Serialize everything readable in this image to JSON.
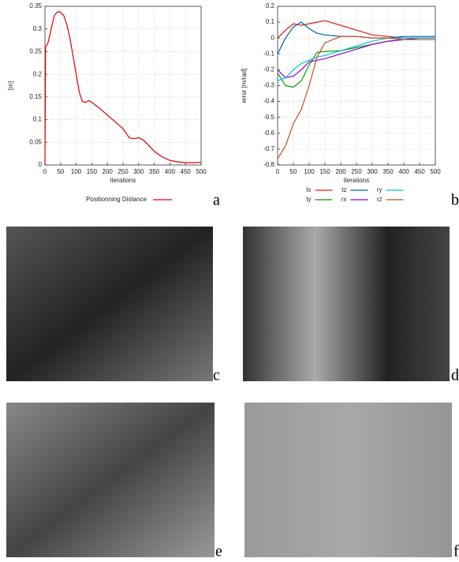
{
  "chart_data": [
    {
      "type": "line",
      "panel": "a",
      "xlabel": "iterations",
      "ylabel": "[m]",
      "xlim": [
        0,
        500
      ],
      "xticks": [
        0,
        50,
        100,
        150,
        200,
        250,
        300,
        350,
        400,
        450,
        500
      ],
      "ylim": [
        0,
        0.35
      ],
      "yticks": [
        0,
        0.05,
        0.1,
        0.15,
        0.2,
        0.25,
        0.3,
        0.35
      ],
      "grid": true,
      "legend": "bottom",
      "x": [
        0,
        2,
        10,
        20,
        30,
        40,
        50,
        60,
        70,
        80,
        90,
        100,
        110,
        120,
        130,
        140,
        150,
        175,
        200,
        225,
        250,
        270,
        285,
        300,
        315,
        330,
        350,
        375,
        400,
        425,
        450,
        475,
        500
      ],
      "series": [
        {
          "name": "Positionning Distance",
          "color": "#e00000",
          "values": [
            0,
            0.26,
            0.27,
            0.3,
            0.33,
            0.338,
            0.337,
            0.33,
            0.31,
            0.28,
            0.24,
            0.2,
            0.16,
            0.14,
            0.138,
            0.142,
            0.138,
            0.125,
            0.11,
            0.095,
            0.08,
            0.06,
            0.058,
            0.06,
            0.055,
            0.045,
            0.03,
            0.018,
            0.01,
            0.007,
            0.005,
            0.005,
            0.006
          ]
        }
      ]
    },
    {
      "type": "line",
      "panel": "b",
      "xlabel": "iterations",
      "ylabel": "error [m/rad]",
      "xlim": [
        0,
        500
      ],
      "xticks": [
        0,
        50,
        100,
        150,
        200,
        250,
        300,
        350,
        400,
        450,
        500
      ],
      "ylim": [
        -0.8,
        0.2
      ],
      "yticks": [
        -0.8,
        -0.7,
        -0.6,
        -0.5,
        -0.4,
        -0.3,
        -0.2,
        -0.1,
        0,
        0.1,
        0.2
      ],
      "grid": true,
      "legend": "bottom",
      "x": [
        0,
        25,
        50,
        75,
        100,
        125,
        150,
        200,
        250,
        300,
        350,
        400,
        450,
        500
      ],
      "series": [
        {
          "name": "tx",
          "color": "#e41a1c",
          "values": [
            0,
            0.05,
            0.09,
            0.08,
            0.09,
            0.1,
            0.11,
            0.08,
            0.05,
            0.02,
            0.01,
            0,
            0,
            0
          ]
        },
        {
          "name": "ty",
          "color": "#00a000",
          "values": [
            -0.22,
            -0.3,
            -0.31,
            -0.27,
            -0.17,
            -0.09,
            -0.085,
            -0.08,
            -0.06,
            -0.04,
            -0.02,
            -0.01,
            0,
            0
          ]
        },
        {
          "name": "tz",
          "color": "#0060ad",
          "values": [
            -0.1,
            0,
            0.07,
            0.1,
            0.06,
            0.03,
            0.02,
            0.01,
            0.01,
            0,
            0,
            0.01,
            0.01,
            0.01
          ]
        },
        {
          "name": "rx",
          "color": "#9400d3",
          "values": [
            -0.2,
            -0.25,
            -0.24,
            -0.2,
            -0.15,
            -0.14,
            -0.13,
            -0.1,
            -0.07,
            -0.04,
            -0.02,
            -0.01,
            0,
            0
          ]
        },
        {
          "name": "ry",
          "color": "#00c0e0",
          "values": [
            -0.27,
            -0.25,
            -0.2,
            -0.16,
            -0.14,
            -0.12,
            -0.11,
            -0.08,
            -0.05,
            -0.02,
            0,
            0,
            0,
            0
          ]
        },
        {
          "name": "rz",
          "color": "#c05020",
          "values": [
            -0.76,
            -0.68,
            -0.54,
            -0.45,
            -0.3,
            -0.12,
            -0.03,
            0.01,
            0.01,
            0,
            0,
            -0.01,
            -0.01,
            -0.01
          ]
        }
      ]
    }
  ],
  "images": [
    {
      "label": "c"
    },
    {
      "label": "d"
    },
    {
      "label": "e"
    },
    {
      "label": "f"
    }
  ]
}
